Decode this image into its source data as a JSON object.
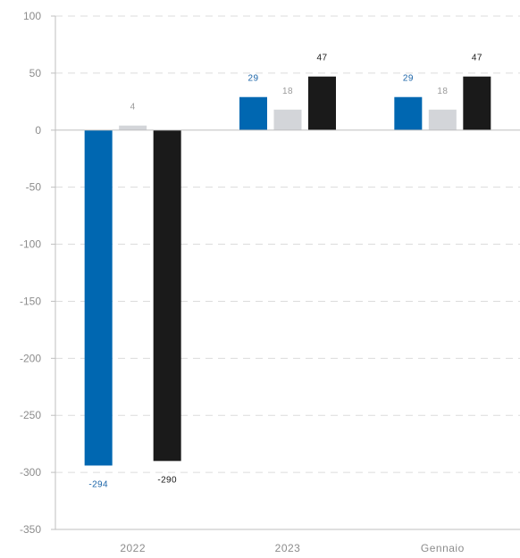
{
  "chart_data": {
    "type": "bar",
    "categories": [
      "2022",
      "2023",
      "Gennaio"
    ],
    "series": [
      {
        "values": [
          -294,
          29,
          29
        ],
        "color": "#0067b1",
        "label_color": "#1a64a8"
      },
      {
        "values": [
          4,
          18,
          18
        ],
        "color": "#d3d5d9",
        "label_color": "#9a9a9a"
      },
      {
        "values": [
          -290,
          47,
          47
        ],
        "color": "#1a1a1a",
        "label_color": "#1a1a1a"
      }
    ],
    "yticks": [
      "100",
      "50",
      "0",
      "-50",
      "-100",
      "-150",
      "-200",
      "-250",
      "-300",
      "-350"
    ],
    "ylim": [
      -350,
      100
    ],
    "grid": true,
    "title": "",
    "xlabel": "",
    "ylabel": ""
  }
}
